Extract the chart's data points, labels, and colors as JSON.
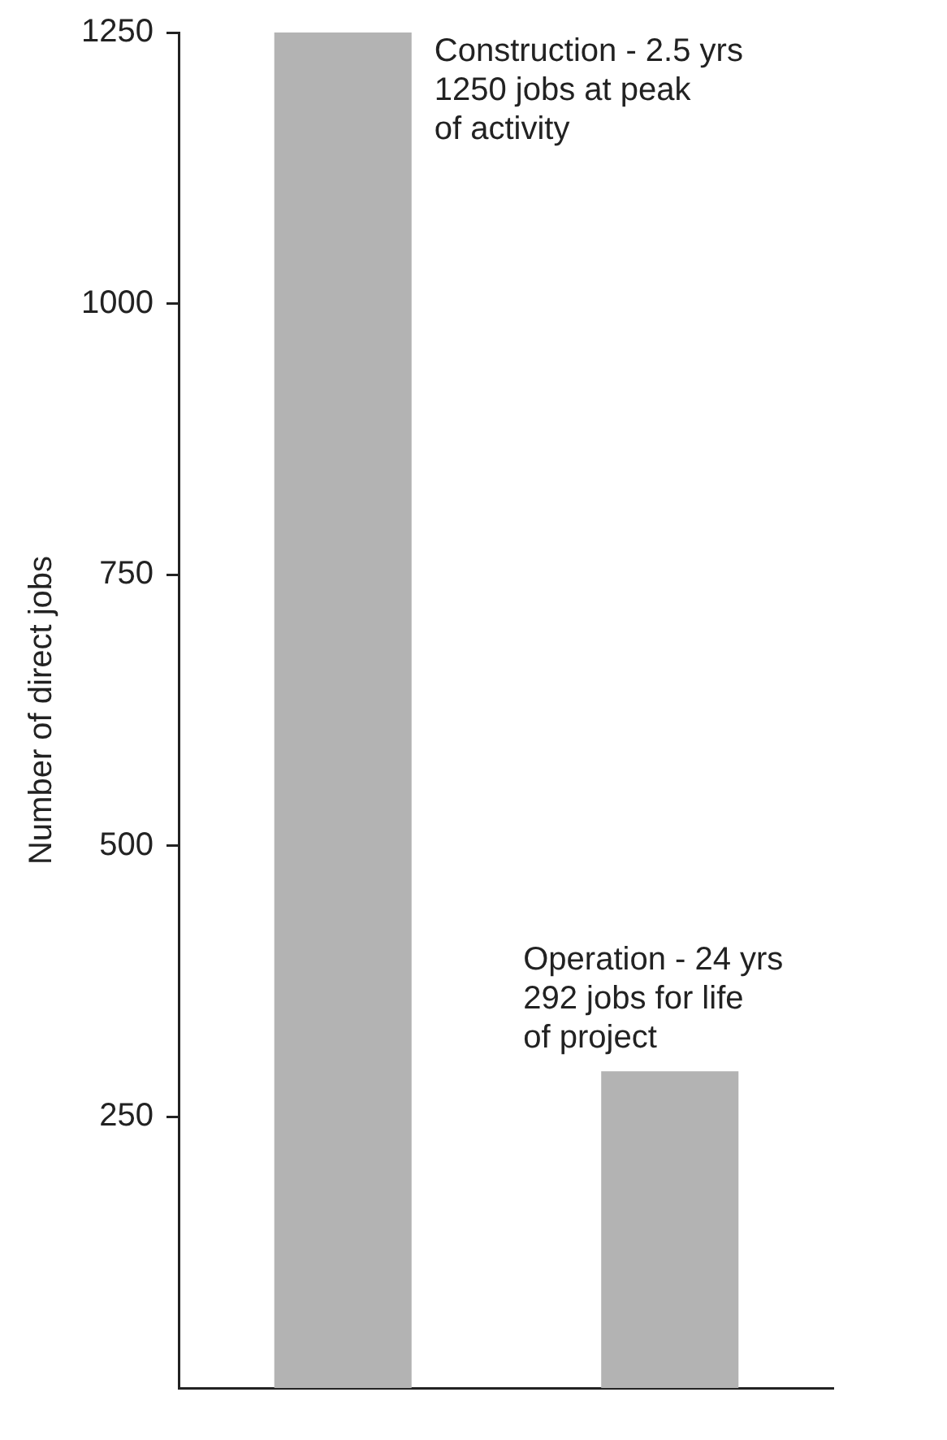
{
  "chart_data": {
    "type": "bar",
    "ylabel": "Number of direct jobs",
    "categories": [
      null,
      null
    ],
    "values": [
      1250,
      292
    ],
    "color": "#b3b3b3",
    "ylim": [
      0,
      1250
    ],
    "yticks": [
      250,
      500,
      750,
      1000,
      1250
    ],
    "grid": false,
    "legend": false,
    "annotations": [
      "Construction - 2.5 yrs\n1250 jobs at peak\nof activity",
      "Operation - 24 yrs\n292 jobs for life\nof project"
    ]
  }
}
